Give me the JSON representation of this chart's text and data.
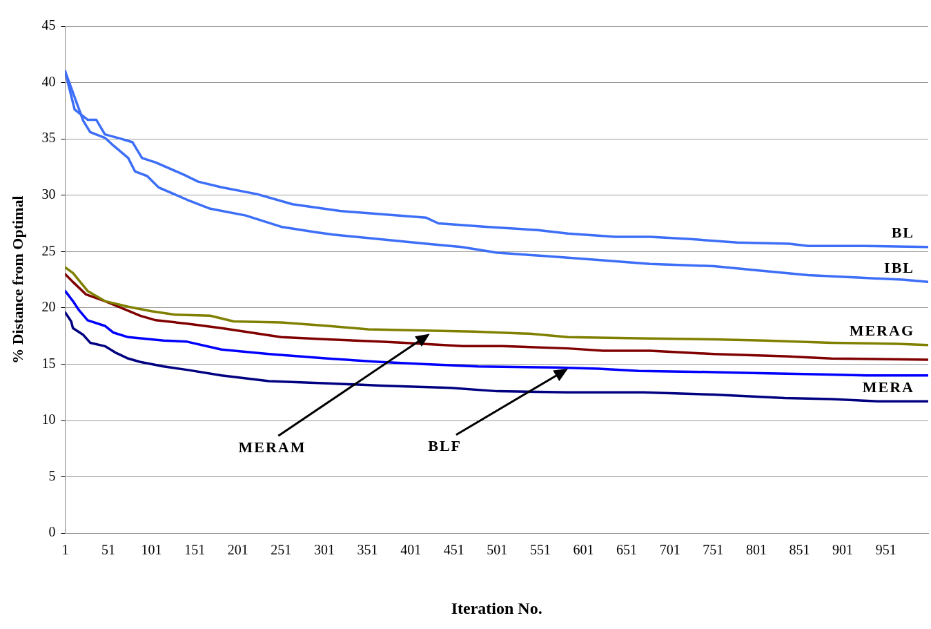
{
  "chart_data": {
    "type": "line",
    "xlabel": "Iteration No.",
    "ylabel": "% Distance from Optimal",
    "xlim": [
      1,
      1000
    ],
    "xticks": [
      1,
      51,
      101,
      151,
      201,
      251,
      301,
      351,
      401,
      451,
      501,
      551,
      601,
      651,
      701,
      751,
      801,
      851,
      901,
      951
    ],
    "ylim": [
      0,
      45
    ],
    "yticks": [
      0,
      5,
      10,
      15,
      20,
      25,
      30,
      35,
      40,
      45
    ],
    "grid": "y",
    "legend": false,
    "marker": "none",
    "line_style": "solid",
    "annotations": [
      {
        "text": "MERAM",
        "x": 423,
        "y": 17.7
      },
      {
        "text": "BLF",
        "x": 583,
        "y": 14.6
      }
    ],
    "series": [
      {
        "name": "BL",
        "color": "#3d6ef7",
        "x": [
          1,
          12,
          27,
          37,
          47,
          66,
          79,
          90,
          106,
          139,
          155,
          182,
          223,
          264,
          319,
          419,
          433,
          488,
          548,
          583,
          638,
          678,
          725,
          779,
          839,
          861,
          926,
          1000
        ],
        "values": [
          41.0,
          37.6,
          36.7,
          36.7,
          35.4,
          35.0,
          34.7,
          33.3,
          32.9,
          31.8,
          31.2,
          30.7,
          30.1,
          29.2,
          28.6,
          28.0,
          27.5,
          27.2,
          26.9,
          26.6,
          26.3,
          26.3,
          26.1,
          25.8,
          25.7,
          25.5,
          25.5,
          25.4
        ]
      },
      {
        "name": "IBL",
        "color": "#3d6ef7",
        "x": [
          1,
          22,
          30,
          47,
          57,
          74,
          82,
          96,
          109,
          142,
          169,
          210,
          251,
          292,
          311,
          419,
          460,
          501,
          556,
          610,
          678,
          752,
          806,
          861,
          915,
          970,
          1000
        ],
        "values": [
          41.0,
          36.6,
          35.6,
          35.1,
          34.4,
          33.3,
          32.1,
          31.7,
          30.7,
          29.6,
          28.8,
          28.2,
          27.2,
          26.7,
          26.5,
          25.7,
          25.4,
          24.9,
          24.6,
          24.3,
          23.9,
          23.7,
          23.3,
          22.9,
          22.7,
          22.5,
          22.3
        ]
      },
      {
        "name": "MERAG",
        "color": "#808000",
        "x": [
          1,
          10,
          27,
          47,
          74,
          101,
          128,
          169,
          196,
          251,
          305,
          352,
          474,
          541,
          583,
          665,
          752,
          811,
          888,
          964,
          1000
        ],
        "values": [
          23.6,
          23.1,
          21.5,
          20.6,
          20.1,
          19.7,
          19.4,
          19.3,
          18.8,
          18.7,
          18.4,
          18.1,
          17.9,
          17.7,
          17.4,
          17.3,
          17.2,
          17.1,
          16.9,
          16.8,
          16.7
        ]
      },
      {
        "color": "#800000",
        "x": [
          1,
          10,
          25,
          47,
          66,
          88,
          106,
          142,
          182,
          251,
          305,
          366,
          393,
          461,
          507,
          583,
          624,
          678,
          752,
          834,
          888,
          1000
        ],
        "values": [
          23.0,
          22.3,
          21.2,
          20.6,
          20.0,
          19.3,
          18.9,
          18.6,
          18.2,
          17.4,
          17.2,
          17.0,
          16.9,
          16.6,
          16.6,
          16.4,
          16.2,
          16.2,
          15.9,
          15.7,
          15.5,
          15.4
        ]
      },
      {
        "color": "#0000ff",
        "x": [
          1,
          10,
          17,
          27,
          47,
          57,
          74,
          115,
          142,
          182,
          237,
          305,
          366,
          419,
          479,
          569,
          618,
          665,
          752,
          806,
          877,
          929,
          1000
        ],
        "values": [
          21.5,
          20.6,
          19.8,
          18.9,
          18.4,
          17.8,
          17.4,
          17.1,
          17.0,
          16.3,
          15.9,
          15.5,
          15.2,
          15.0,
          14.8,
          14.7,
          14.6,
          14.4,
          14.3,
          14.2,
          14.1,
          14.0,
          14.0
        ]
      },
      {
        "name": "MERA",
        "color": "#000080",
        "x": [
          1,
          8,
          10,
          22,
          30,
          47,
          60,
          74,
          88,
          115,
          142,
          182,
          237,
          305,
          366,
          447,
          501,
          583,
          638,
          670,
          752,
          834,
          888,
          943,
          1000
        ],
        "values": [
          19.6,
          18.8,
          18.2,
          17.6,
          16.9,
          16.6,
          16.0,
          15.5,
          15.2,
          14.8,
          14.5,
          14.0,
          13.5,
          13.3,
          13.1,
          12.9,
          12.6,
          12.5,
          12.5,
          12.5,
          12.3,
          12.0,
          11.9,
          11.7,
          11.7
        ]
      }
    ]
  }
}
